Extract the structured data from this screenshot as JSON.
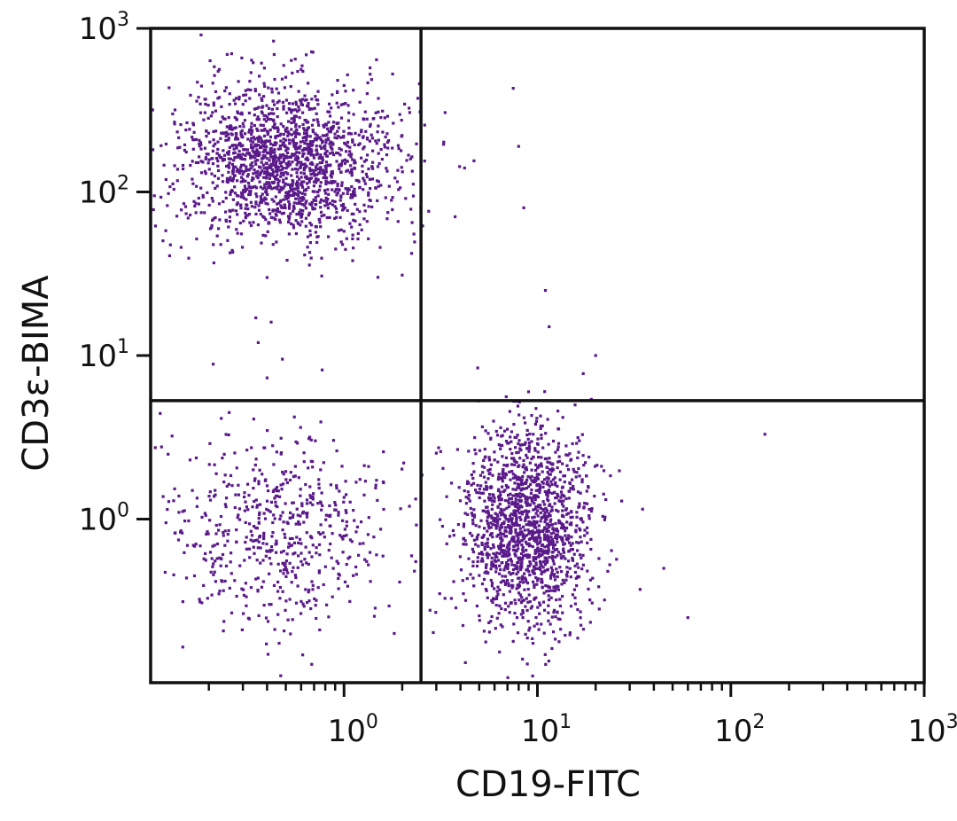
{
  "chart_data": {
    "type": "scatter",
    "title": "",
    "xlabel": "CD19-FITC",
    "ylabel": "CD3ε-BIMA",
    "x_scale": "log",
    "y_scale": "log",
    "xlim": [
      0.1,
      1000
    ],
    "ylim": [
      0.1,
      1000
    ],
    "x_ticks": [
      {
        "value": 1,
        "base": "10",
        "exp": "0"
      },
      {
        "value": 10,
        "base": "10",
        "exp": "1"
      },
      {
        "value": 100,
        "base": "10",
        "exp": "2"
      },
      {
        "value": 1000,
        "base": "10",
        "exp": "3"
      }
    ],
    "y_ticks": [
      {
        "value": 1,
        "base": "10",
        "exp": "0"
      },
      {
        "value": 10,
        "base": "10",
        "exp": "1"
      },
      {
        "value": 100,
        "base": "10",
        "exp": "2"
      },
      {
        "value": 1000,
        "base": "10",
        "exp": "3"
      }
    ],
    "quadrant_gates": {
      "x": 2.5,
      "y": 5.3
    },
    "grid": false,
    "point_color": "#5a1a8a",
    "populations": [
      {
        "cx": 0.5,
        "cy": 150,
        "sx": 0.28,
        "sy": 0.24,
        "n": 1700
      },
      {
        "cx": 0.48,
        "cy": 0.8,
        "sx": 0.3,
        "sy": 0.3,
        "n": 600
      },
      {
        "cx": 9.0,
        "cy": 0.9,
        "sx": 0.17,
        "sy": 0.3,
        "n": 1500
      }
    ],
    "outliers": [
      [
        7.5,
        430
      ],
      [
        8,
        190
      ],
      [
        4.7,
        155
      ],
      [
        4.2,
        140
      ],
      [
        8.5,
        80
      ],
      [
        11,
        25
      ],
      [
        11.5,
        15
      ],
      [
        20,
        10
      ],
      [
        0.4,
        30
      ],
      [
        0.35,
        17
      ],
      [
        0.42,
        16
      ],
      [
        0.36,
        12
      ],
      [
        0.48,
        9.5
      ],
      [
        0.4,
        7.3
      ],
      [
        2.25,
        65
      ],
      [
        2.55,
        62
      ],
      [
        2.0,
        31
      ],
      [
        9,
        6
      ],
      [
        19,
        5.4
      ],
      [
        150,
        3.3
      ],
      [
        60,
        0.25
      ],
      [
        0.12,
        0.95
      ],
      [
        0.14,
        1.1
      ],
      [
        0.16,
        2.3
      ],
      [
        35,
        1.15
      ],
      [
        45,
        0.5
      ],
      [
        0.13,
        300
      ],
      [
        0.15,
        180
      ],
      [
        2.35,
        0.55
      ]
    ]
  }
}
